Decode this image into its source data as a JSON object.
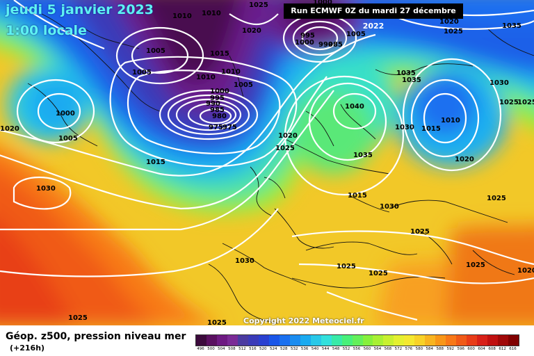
{
  "header": {
    "date": "jeudi 5 janvier 2023",
    "time": "1:00 locale",
    "run": "Run ECMWF 0Z du mardi 27 décembre 2022"
  },
  "copyright": "Copyright 2022 Meteociel.fr",
  "legend": {
    "title": "Géop. z500, pression niveau mer",
    "subtitle": "(+216h)",
    "ticks": [
      "496",
      "500",
      "504",
      "508",
      "512",
      "516",
      "520",
      "524",
      "528",
      "532",
      "536",
      "540",
      "544",
      "548",
      "552",
      "556",
      "560",
      "564",
      "568",
      "572",
      "576",
      "580",
      "584",
      "588",
      "592",
      "596",
      "600",
      "604",
      "608",
      "612",
      "616"
    ],
    "colors": [
      "#3c0a3c",
      "#5a1060",
      "#6e1a82",
      "#7a2a96",
      "#4a3aa0",
      "#3a3ab8",
      "#2a40d0",
      "#1a56e8",
      "#1a70f0",
      "#1a8cf0",
      "#1aaaf0",
      "#28c8e8",
      "#32e0dc",
      "#38eaa8",
      "#48f07a",
      "#64f05a",
      "#86f03c",
      "#a8f034",
      "#c8f030",
      "#e4f030",
      "#f4e830",
      "#f8d228",
      "#f8b420",
      "#f89618",
      "#f87818",
      "#f05a18",
      "#e83c18",
      "#d82018",
      "#c01010",
      "#a00808",
      "#800000"
    ]
  },
  "isobars": [
    {
      "label": "1010",
      "region": "top-left"
    },
    {
      "label": "1005",
      "region": "Greenland south"
    },
    {
      "label": "1005",
      "region": "Greenland"
    },
    {
      "label": "1010",
      "region": "Greenland east"
    },
    {
      "label": "1015",
      "region": "north Atlantic"
    },
    {
      "label": "1020",
      "region": "north Atlantic"
    },
    {
      "label": "1025",
      "region": "Greenland top"
    },
    {
      "label": "1010",
      "region": "top center"
    },
    {
      "label": "1000",
      "region": "Iceland low"
    },
    {
      "label": "995",
      "region": "Iceland low"
    },
    {
      "label": "990",
      "region": "Iceland low"
    },
    {
      "label": "985",
      "region": "Iceland low"
    },
    {
      "label": "980",
      "region": "Iceland low"
    },
    {
      "label": "975",
      "region": "Iceland low center"
    },
    {
      "label": "975",
      "region": "Iceland low center"
    },
    {
      "label": "1005",
      "region": "Iceland low"
    },
    {
      "label": "1010",
      "region": "Iceland low"
    },
    {
      "label": "1015",
      "region": "Labrador"
    },
    {
      "label": "1020",
      "region": "North Sea"
    },
    {
      "label": "1025",
      "region": "North Sea"
    },
    {
      "label": "1000",
      "region": "Arctic low"
    },
    {
      "label": "995",
      "region": "Arctic low"
    },
    {
      "label": "990",
      "region": "Arctic low center"
    },
    {
      "label": "985",
      "region": "Arctic low"
    },
    {
      "label": "1005",
      "region": "Arctic"
    },
    {
      "label": "1000",
      "region": "Arctic"
    },
    {
      "label": "1040",
      "region": "Scandinavia high"
    },
    {
      "label": "1035",
      "region": "Baltic"
    },
    {
      "label": "1035",
      "region": "Russia north"
    },
    {
      "label": "1035",
      "region": "Russia north"
    },
    {
      "label": "1030",
      "region": "Russia"
    },
    {
      "label": "1015",
      "region": "Russia low"
    },
    {
      "label": "1010",
      "region": "Russia low"
    },
    {
      "label": "1030",
      "region": "Siberia"
    },
    {
      "label": "1025",
      "region": "Siberia"
    },
    {
      "label": "1020",
      "region": "Russia south"
    },
    {
      "label": "1020",
      "region": "top right"
    },
    {
      "label": "1025",
      "region": "top right"
    },
    {
      "label": "1035",
      "region": "top right"
    },
    {
      "label": "1030",
      "region": "central Europe"
    },
    {
      "label": "1025",
      "region": "Black Sea"
    },
    {
      "label": "1025",
      "region": "Caspian"
    },
    {
      "label": "1025",
      "region": "Balkans"
    },
    {
      "label": "1025",
      "region": "Mediterranean"
    },
    {
      "label": "1025",
      "region": "Turkey"
    },
    {
      "label": "1020",
      "region": "Middle East"
    },
    {
      "label": "1030",
      "region": "Iberia"
    },
    {
      "label": "1025",
      "region": "Sahara"
    },
    {
      "label": "1025",
      "region": "Atlantic south"
    },
    {
      "label": "1030",
      "region": "Azores"
    },
    {
      "label": "1020",
      "region": "Atlantic west"
    },
    {
      "label": "1000",
      "region": "Labrador low"
    },
    {
      "label": "1005",
      "region": "Labrador"
    },
    {
      "label": "1015",
      "region": "Atlantic"
    },
    {
      "label": "1025",
      "region": "right edge"
    }
  ]
}
